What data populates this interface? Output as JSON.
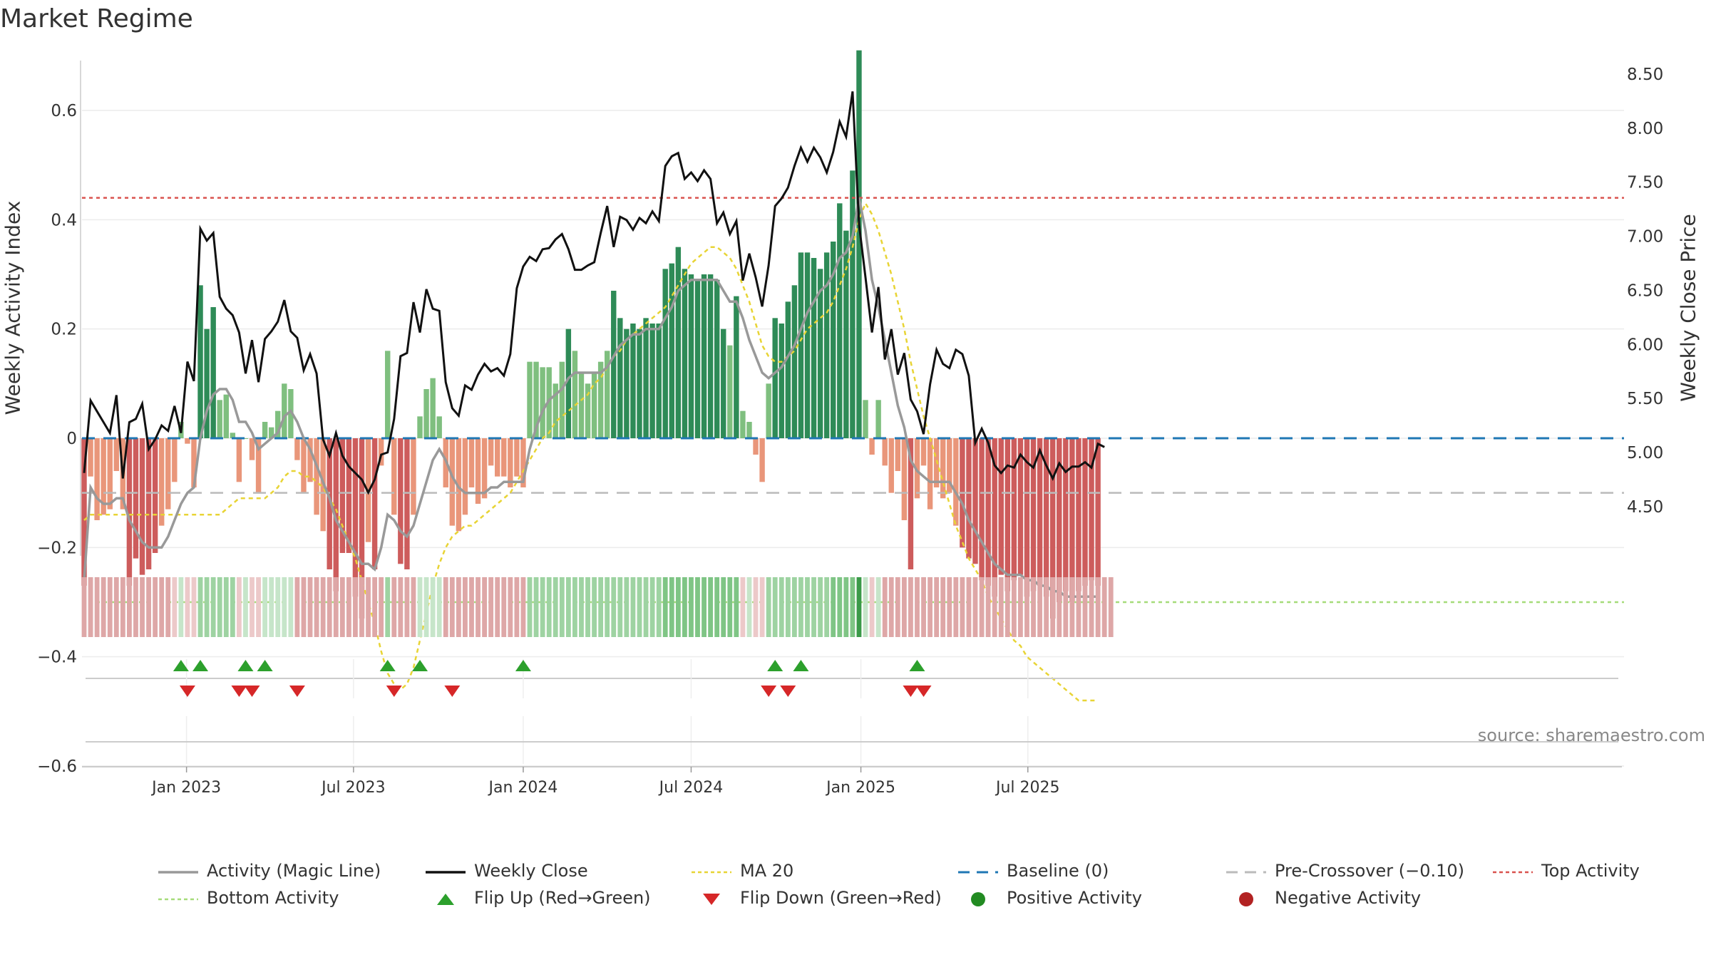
{
  "title": "Market Regime",
  "source": "source: sharemaestro.com",
  "y_left_label": "Weekly Activity Index",
  "y_right_label": "Weekly Close Price",
  "colors": {
    "green_dark": "#2e8b57",
    "green_light": "#7fbf7f",
    "red_dark": "#cd5c5c",
    "red_light": "#e9967a",
    "magic_line": "#999999",
    "close": "#111111",
    "ma20": "#e8d435",
    "baseline": "#1f77b4",
    "pre_crossover": "#bbbbbb",
    "top_activity": "#d9534f",
    "bottom_activity": "#a6dc7a",
    "flip_up": "#2ca02c",
    "flip_down": "#d62728"
  },
  "legend": [
    {
      "label": "Activity (Magic Line)",
      "kind": "line",
      "color": "#999999"
    },
    {
      "label": "Weekly Close",
      "kind": "line",
      "color": "#111111"
    },
    {
      "label": "MA 20",
      "kind": "dotted",
      "color": "#e8d435"
    },
    {
      "label": "Baseline (0)",
      "kind": "dashed",
      "color": "#1f77b4"
    },
    {
      "label": "Pre-Crossover (−0.10)",
      "kind": "dashed",
      "color": "#bbbbbb"
    },
    {
      "label": "Top Activity",
      "kind": "dotted",
      "color": "#d9534f"
    },
    {
      "label": "Bottom Activity",
      "kind": "dotted",
      "color": "#a6dc7a"
    },
    {
      "label": "Flip Up (Red→Green)",
      "kind": "triangle-up",
      "color": "#2ca02c"
    },
    {
      "label": "Flip Down (Green→Red)",
      "kind": "triangle-down",
      "color": "#d62728"
    },
    {
      "label": "Positive Activity",
      "kind": "dot",
      "color": "#228b22"
    },
    {
      "label": "Negative Activity",
      "kind": "dot",
      "color": "#b22222"
    }
  ],
  "chart_data": {
    "type": "bar",
    "x_start": "2022-09-12",
    "x_step_days": 7,
    "x_ticks": [
      {
        "date": "2023-01-01",
        "label": "Jan 2023"
      },
      {
        "date": "2023-07-01",
        "label": "Jul 2023"
      },
      {
        "date": "2024-01-01",
        "label": "Jan 2024"
      },
      {
        "date": "2024-07-01",
        "label": "Jul 2024"
      },
      {
        "date": "2025-01-01",
        "label": "Jan 2025"
      },
      {
        "date": "2025-07-01",
        "label": "Jul 2025"
      }
    ],
    "y_left": {
      "min": -0.75,
      "max": 0.76,
      "ticks": [
        0.6,
        0.4,
        0.2,
        0,
        -0.2,
        -0.4,
        -0.6
      ],
      "tick_labels": [
        "0.6",
        "0.4",
        "0.2",
        "0",
        "−0.2",
        "−0.4",
        "−0.6"
      ]
    },
    "y_right": {
      "min": 4.07,
      "max": 8.6,
      "ticks": [
        8.5,
        8.0,
        7.5,
        7.0,
        6.5,
        6.0,
        5.5,
        5.0,
        4.5
      ],
      "tick_labels": [
        "8.50",
        "8.00",
        "7.50",
        "7.00",
        "6.50",
        "6.00",
        "5.50",
        "5.00",
        "4.50"
      ]
    },
    "reference_lines": {
      "baseline": 0,
      "pre_crossover": -0.1,
      "top_activity": 0.44,
      "bottom_activity": -0.3
    },
    "grid": true,
    "legend_position": "bottom",
    "series": [
      {
        "name": "Weekly Activity Index",
        "values": [
          -0.27,
          -0.07,
          -0.15,
          -0.14,
          -0.13,
          -0.06,
          -0.13,
          -0.27,
          -0.22,
          -0.25,
          -0.24,
          -0.21,
          -0.16,
          -0.13,
          -0.08,
          0.03,
          -0.01,
          -0.09,
          0.28,
          0.2,
          0.24,
          0.07,
          0.08,
          0.01,
          -0.08,
          0.0,
          -0.04,
          -0.1,
          0.03,
          0.02,
          0.05,
          0.1,
          0.09,
          -0.04,
          -0.1,
          -0.08,
          -0.14,
          -0.17,
          -0.24,
          -0.28,
          -0.21,
          -0.21,
          -0.29,
          -0.33,
          -0.19,
          -0.24,
          -0.05,
          0.16,
          -0.14,
          -0.23,
          -0.24,
          -0.14,
          0.04,
          0.09,
          0.11,
          0.04,
          -0.09,
          -0.16,
          -0.17,
          -0.14,
          -0.09,
          -0.12,
          -0.11,
          -0.05,
          -0.07,
          -0.07,
          -0.09,
          -0.07,
          -0.09,
          0.14,
          0.14,
          0.13,
          0.13,
          0.1,
          0.14,
          0.2,
          0.16,
          0.12,
          0.1,
          0.12,
          0.14,
          0.16,
          0.27,
          0.22,
          0.2,
          0.21,
          0.2,
          0.22,
          0.21,
          0.21,
          0.31,
          0.32,
          0.35,
          0.31,
          0.3,
          0.29,
          0.3,
          0.3,
          0.29,
          0.2,
          0.17,
          0.26,
          0.05,
          0.03,
          -0.03,
          -0.08,
          0.1,
          0.22,
          0.21,
          0.25,
          0.28,
          0.34,
          0.34,
          0.33,
          0.31,
          0.34,
          0.36,
          0.43,
          0.38,
          0.49,
          0.71,
          0.07,
          -0.03,
          0.07,
          -0.05,
          -0.1,
          -0.06,
          -0.15,
          -0.24,
          -0.11,
          -0.05,
          -0.13,
          -0.09,
          -0.11,
          -0.1,
          -0.16,
          -0.2,
          -0.22,
          -0.23,
          -0.26,
          -0.27,
          -0.29,
          -0.25,
          -0.28,
          -0.26,
          -0.25,
          -0.29,
          -0.28,
          -0.27,
          -0.29,
          -0.33,
          -0.3,
          -0.28,
          -0.3,
          -0.28,
          -0.27,
          -0.26,
          -0.27
        ]
      },
      {
        "name": "Activity (Magic Line)",
        "values": [
          -0.26,
          -0.09,
          -0.11,
          -0.12,
          -0.12,
          -0.11,
          -0.11,
          -0.15,
          -0.17,
          -0.19,
          -0.2,
          -0.2,
          -0.2,
          -0.18,
          -0.15,
          -0.12,
          -0.1,
          -0.09,
          0.0,
          0.05,
          0.08,
          0.09,
          0.09,
          0.07,
          0.03,
          0.03,
          0.01,
          -0.02,
          -0.01,
          0.0,
          0.01,
          0.04,
          0.05,
          0.03,
          0.0,
          -0.02,
          -0.05,
          -0.08,
          -0.11,
          -0.15,
          -0.17,
          -0.19,
          -0.21,
          -0.23,
          -0.23,
          -0.24,
          -0.2,
          -0.14,
          -0.15,
          -0.17,
          -0.18,
          -0.16,
          -0.12,
          -0.08,
          -0.04,
          -0.02,
          -0.04,
          -0.07,
          -0.09,
          -0.1,
          -0.1,
          -0.1,
          -0.1,
          -0.09,
          -0.09,
          -0.08,
          -0.08,
          -0.08,
          -0.08,
          -0.02,
          0.02,
          0.05,
          0.07,
          0.08,
          0.09,
          0.11,
          0.12,
          0.12,
          0.12,
          0.12,
          0.12,
          0.13,
          0.15,
          0.17,
          0.18,
          0.19,
          0.19,
          0.2,
          0.2,
          0.2,
          0.22,
          0.24,
          0.27,
          0.28,
          0.29,
          0.29,
          0.29,
          0.29,
          0.29,
          0.27,
          0.25,
          0.25,
          0.22,
          0.18,
          0.15,
          0.12,
          0.11,
          0.12,
          0.13,
          0.15,
          0.17,
          0.2,
          0.23,
          0.25,
          0.27,
          0.28,
          0.3,
          0.33,
          0.34,
          0.37,
          0.44,
          0.38,
          0.29,
          0.24,
          0.18,
          0.12,
          0.06,
          0.02,
          -0.04,
          -0.06,
          -0.07,
          -0.08,
          -0.08,
          -0.08,
          -0.08,
          -0.1,
          -0.12,
          -0.15,
          -0.17,
          -0.19,
          -0.21,
          -0.23,
          -0.24,
          -0.25,
          -0.25,
          -0.25,
          -0.26,
          -0.26,
          -0.27,
          -0.27,
          -0.28,
          -0.28,
          -0.29,
          -0.29,
          -0.29,
          -0.29,
          -0.29,
          -0.29
        ]
      },
      {
        "name": "MA 20",
        "values": [
          -0.15,
          -0.14,
          -0.14,
          -0.14,
          -0.14,
          -0.14,
          -0.14,
          -0.14,
          -0.14,
          -0.14,
          -0.14,
          -0.14,
          -0.14,
          -0.14,
          -0.14,
          -0.14,
          -0.14,
          -0.14,
          -0.14,
          -0.14,
          -0.14,
          -0.14,
          -0.13,
          -0.12,
          -0.11,
          -0.11,
          -0.11,
          -0.11,
          -0.11,
          -0.1,
          -0.09,
          -0.07,
          -0.06,
          -0.06,
          -0.07,
          -0.07,
          -0.08,
          -0.09,
          -0.11,
          -0.13,
          -0.16,
          -0.19,
          -0.22,
          -0.26,
          -0.3,
          -0.34,
          -0.39,
          -0.43,
          -0.45,
          -0.46,
          -0.45,
          -0.42,
          -0.37,
          -0.32,
          -0.27,
          -0.23,
          -0.2,
          -0.18,
          -0.17,
          -0.16,
          -0.16,
          -0.15,
          -0.14,
          -0.13,
          -0.12,
          -0.11,
          -0.1,
          -0.08,
          -0.06,
          -0.04,
          -0.02,
          0.0,
          0.01,
          0.03,
          0.04,
          0.05,
          0.06,
          0.07,
          0.08,
          0.1,
          0.11,
          0.13,
          0.15,
          0.16,
          0.18,
          0.19,
          0.2,
          0.21,
          0.22,
          0.23,
          0.24,
          0.26,
          0.28,
          0.3,
          0.32,
          0.33,
          0.34,
          0.35,
          0.35,
          0.34,
          0.33,
          0.31,
          0.28,
          0.25,
          0.21,
          0.17,
          0.15,
          0.14,
          0.14,
          0.15,
          0.16,
          0.18,
          0.2,
          0.21,
          0.22,
          0.23,
          0.25,
          0.28,
          0.31,
          0.35,
          0.4,
          0.43,
          0.41,
          0.38,
          0.34,
          0.3,
          0.25,
          0.2,
          0.14,
          0.09,
          0.04,
          0.0,
          -0.04,
          -0.08,
          -0.12,
          -0.16,
          -0.19,
          -0.22,
          -0.24,
          -0.26,
          -0.29,
          -0.31,
          -0.33,
          -0.35,
          -0.37,
          -0.38,
          -0.4,
          -0.41,
          -0.42,
          -0.43,
          -0.44,
          -0.45,
          -0.46,
          -0.47,
          -0.48,
          -0.48,
          -0.48,
          -0.48
        ]
      },
      {
        "name": "Weekly Close",
        "values": [
          4.81,
          5.48,
          5.38,
          5.28,
          5.18,
          5.53,
          4.76,
          5.28,
          5.31,
          5.45,
          5.03,
          5.12,
          5.25,
          5.2,
          5.43,
          5.18,
          5.84,
          5.66,
          7.07,
          6.96,
          7.03,
          6.44,
          6.33,
          6.27,
          6.11,
          5.73,
          6.04,
          5.65,
          6.05,
          6.12,
          6.21,
          6.41,
          6.12,
          6.06,
          5.76,
          5.91,
          5.73,
          5.12,
          4.97,
          5.18,
          4.97,
          4.87,
          4.81,
          4.75,
          4.63,
          4.75,
          4.98,
          5.0,
          5.31,
          5.89,
          5.92,
          6.39,
          6.11,
          6.51,
          6.33,
          6.31,
          5.65,
          5.41,
          5.34,
          5.62,
          5.58,
          5.72,
          5.82,
          5.75,
          5.78,
          5.71,
          5.91,
          6.52,
          6.72,
          6.81,
          6.77,
          6.88,
          6.89,
          6.97,
          7.02,
          6.88,
          6.69,
          6.69,
          6.73,
          6.76,
          7.03,
          7.28,
          6.9,
          7.18,
          7.15,
          7.06,
          7.17,
          7.12,
          7.23,
          7.14,
          7.65,
          7.74,
          7.77,
          7.53,
          7.59,
          7.51,
          7.61,
          7.53,
          7.12,
          7.22,
          7.02,
          7.14,
          6.59,
          6.84,
          6.62,
          6.35,
          6.73,
          7.28,
          7.35,
          7.45,
          7.65,
          7.82,
          7.69,
          7.82,
          7.73,
          7.59,
          7.78,
          8.06,
          7.92,
          8.34,
          7.11,
          6.62,
          6.11,
          6.53,
          5.86,
          6.14,
          5.72,
          5.92,
          5.49,
          5.38,
          5.17,
          5.63,
          5.95,
          5.82,
          5.78,
          5.95,
          5.91,
          5.71,
          5.09,
          5.22,
          5.09,
          4.88,
          4.81,
          4.88,
          4.86,
          4.98,
          4.91,
          4.86,
          5.02,
          4.88,
          4.76,
          4.9,
          4.82,
          4.87,
          4.87,
          4.91,
          4.86,
          5.08,
          5.05
        ]
      }
    ],
    "regime_strip_levels": [
      -1,
      -1,
      -1,
      -1,
      -1,
      -1,
      -1,
      -1,
      -1,
      -1,
      -1,
      -1,
      -1,
      -1,
      0,
      1,
      0,
      0,
      2,
      2,
      2,
      2,
      2,
      2,
      0,
      1,
      0,
      0,
      1,
      1,
      1,
      1,
      1,
      -1,
      -1,
      -1,
      -1,
      -1,
      -1,
      -1,
      -1,
      -1,
      -1,
      -1,
      -1,
      -1,
      -1,
      2,
      -1,
      -1,
      -1,
      -1,
      1,
      1,
      1,
      1,
      -1,
      -1,
      -1,
      -1,
      -1,
      -1,
      -1,
      -1,
      -1,
      -1,
      -1,
      -1,
      -1,
      2,
      2,
      2,
      2,
      2,
      2,
      2,
      2,
      2,
      2,
      2,
      2,
      2,
      2,
      2,
      2,
      2,
      2,
      2,
      2,
      2,
      3,
      3,
      3,
      3,
      3,
      3,
      3,
      3,
      3,
      3,
      3,
      3,
      0,
      1,
      0,
      0,
      2,
      2,
      2,
      2,
      2,
      2,
      2,
      2,
      2,
      2,
      3,
      3,
      3,
      3,
      4,
      1,
      0,
      1,
      -1,
      -1,
      -1,
      -1,
      -1,
      -1,
      -1,
      -1,
      -1,
      -1,
      -1,
      -1,
      -1,
      -1,
      -1,
      -1,
      -1,
      -1,
      -1,
      -1,
      -1,
      -1,
      -1,
      -1,
      -1,
      -1,
      -1,
      -1,
      -1,
      -1,
      -1,
      -1,
      -1,
      -1,
      -1,
      -1
    ],
    "flip_up_weeks": [
      15,
      18,
      25,
      28,
      47,
      52,
      68,
      107,
      111,
      129
    ],
    "flip_down_weeks": [
      16,
      24,
      26,
      33,
      48,
      57,
      106,
      109,
      128,
      130
    ]
  }
}
